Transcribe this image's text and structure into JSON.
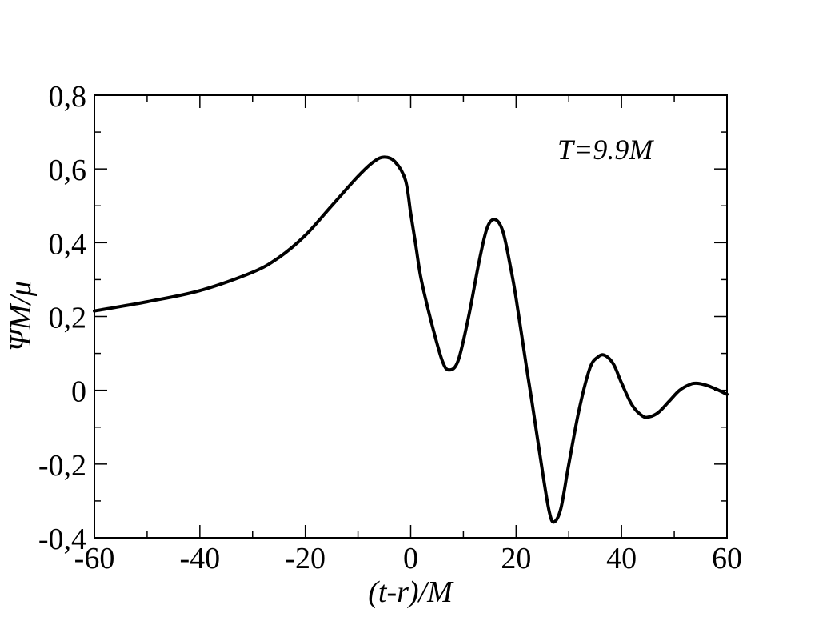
{
  "chart_data": {
    "type": "line",
    "title": "",
    "xlabel": "(t-r)/M",
    "ylabel": "ΨM/μ",
    "xlim": [
      -60,
      60
    ],
    "ylim": [
      -0.4,
      0.8
    ],
    "x_ticks": [
      -60,
      -40,
      -20,
      0,
      20,
      40,
      60
    ],
    "x_tick_labels": [
      "-60",
      "-40",
      "-20",
      "0",
      "20",
      "40",
      "60"
    ],
    "y_ticks": [
      -0.4,
      -0.2,
      0,
      0.2,
      0.4,
      0.6,
      0.8
    ],
    "y_tick_labels": [
      "-0,4",
      "-0,2",
      "0",
      "0,2",
      "0,4",
      "0,6",
      "0,8"
    ],
    "x_minor_step": 10,
    "y_minor_step": 0.1,
    "grid": false,
    "legend": null,
    "annotations": [
      {
        "text": "T=9.9M",
        "x": 37,
        "y": 0.65
      }
    ],
    "series": [
      {
        "name": "Psi",
        "color": "#000000",
        "x": [
          -60,
          -50,
          -40,
          -30,
          -25,
          -20,
          -15,
          -10,
          -7,
          -5,
          -3,
          -1,
          0,
          1,
          2,
          4,
          6,
          7.3,
          9,
          11,
          13,
          14.5,
          16,
          17.5,
          19,
          20,
          22,
          23,
          25,
          26.3,
          27.2,
          28.5,
          30,
          32,
          34,
          35.5,
          36.8,
          38.5,
          40,
          42,
          44,
          45.3,
          47,
          49,
          51,
          53,
          54.3,
          56,
          58,
          60
        ],
        "y": [
          0.215,
          0.24,
          0.27,
          0.32,
          0.36,
          0.42,
          0.5,
          0.58,
          0.62,
          0.632,
          0.62,
          0.57,
          0.48,
          0.39,
          0.3,
          0.18,
          0.08,
          0.055,
          0.08,
          0.2,
          0.35,
          0.44,
          0.463,
          0.43,
          0.33,
          0.25,
          0.06,
          -0.03,
          -0.22,
          -0.33,
          -0.357,
          -0.32,
          -0.2,
          -0.05,
          0.06,
          0.09,
          0.095,
          0.07,
          0.02,
          -0.04,
          -0.07,
          -0.072,
          -0.06,
          -0.03,
          0.0,
          0.016,
          0.019,
          0.014,
          0.003,
          -0.011
        ]
      }
    ]
  },
  "labels": {
    "xlabel": "(t-r)/M",
    "ylabel": "ΨM/μ",
    "annotation": "T=9.9M"
  }
}
